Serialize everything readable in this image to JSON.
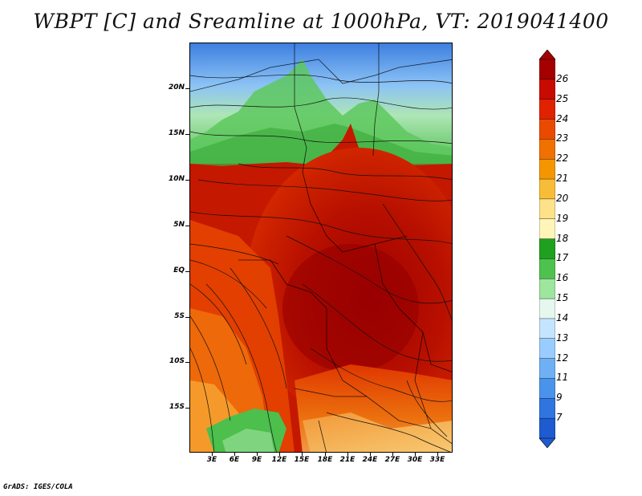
{
  "title": "WBPT [C] and Sreamline at 1000hPa, VT: 2019041400",
  "footer": "GrADS: IGES/COLA",
  "lat_labels": [
    "20N",
    "15N",
    "10N",
    "5N",
    "EQ",
    "5S",
    "10S",
    "15S"
  ],
  "lon_labels": [
    "3E",
    "6E",
    "9E",
    "12E",
    "15E",
    "18E",
    "21E",
    "24E",
    "27E",
    "30E",
    "33E"
  ],
  "colorbar": {
    "labels": [
      "26",
      "25",
      "24",
      "23",
      "22",
      "21",
      "20",
      "19",
      "18",
      "17",
      "16",
      "15",
      "14",
      "13",
      "12",
      "11",
      "9",
      "7"
    ],
    "colors": [
      "#a50000",
      "#c80a00",
      "#e02200",
      "#ea4a00",
      "#f07000",
      "#f39600",
      "#f8bd38",
      "#fde28a",
      "#fff5b8",
      "#1fa01f",
      "#4ec24e",
      "#9ee59e",
      "#e6f8ee",
      "#c5e4ff",
      "#99ccff",
      "#6fb0f5",
      "#4a93ea",
      "#2f74df",
      "#1e5bd0"
    ]
  },
  "map": {
    "variable": "WBPT [C]",
    "level": "1000hPa",
    "valid_time": "2019041400",
    "lon_range": [
      0,
      35
    ],
    "lat_range": [
      -20,
      24
    ]
  }
}
